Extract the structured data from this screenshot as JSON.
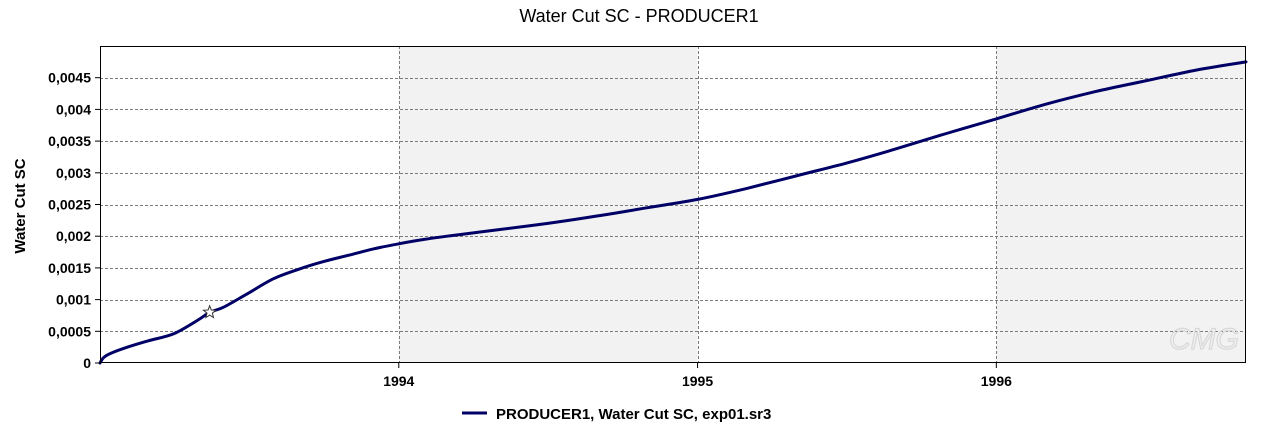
{
  "chart_data": {
    "type": "line",
    "title": "Water Cut SC - PRODUCER1",
    "xlabel": "",
    "ylabel": "Water Cut SC",
    "xlim": [
      "1993-01-01",
      "1996-11-01"
    ],
    "ylim": [
      0,
      0.005
    ],
    "x_ticks": [
      {
        "value": "1994-01-01",
        "label": "1994"
      },
      {
        "value": "1995-01-01",
        "label": "1995"
      },
      {
        "value": "1996-01-01",
        "label": "1996"
      }
    ],
    "y_ticks": [
      {
        "value": 0,
        "label": "0"
      },
      {
        "value": 0.0005,
        "label": "0,0005"
      },
      {
        "value": 0.001,
        "label": "0,001"
      },
      {
        "value": 0.0015,
        "label": "0,0015"
      },
      {
        "value": 0.002,
        "label": "0,002"
      },
      {
        "value": 0.0025,
        "label": "0,0025"
      },
      {
        "value": 0.003,
        "label": "0,003"
      },
      {
        "value": 0.0035,
        "label": "0,0035"
      },
      {
        "value": 0.004,
        "label": "0,004"
      },
      {
        "value": 0.0045,
        "label": "0,0045"
      }
    ],
    "grid": true,
    "legend_position": "bottom",
    "series": [
      {
        "name": "PRODUCER1, Water Cut SC, exp01.sr3",
        "color": "#000066",
        "x": [
          "1993-01-01",
          "1993-01-05",
          "1993-01-12",
          "1993-02-01",
          "1993-03-01",
          "1993-04-01",
          "1993-05-01",
          "1993-05-15",
          "1993-06-01",
          "1993-07-01",
          "1993-08-01",
          "1993-09-01",
          "1993-10-01",
          "1993-11-01",
          "1993-12-01",
          "1994-01-01",
          "1994-02-01",
          "1994-03-01",
          "1994-04-01",
          "1994-05-01",
          "1994-07-01",
          "1994-09-01",
          "1994-11-01",
          "1995-01-01",
          "1995-03-01",
          "1995-05-01",
          "1995-07-01",
          "1995-09-01",
          "1995-11-01",
          "1996-01-01",
          "1996-03-01",
          "1996-05-01",
          "1996-07-01",
          "1996-09-01",
          "1996-11-01"
        ],
        "values": [
          0,
          8e-05,
          0.00014,
          0.00024,
          0.00035,
          0.00046,
          0.00068,
          0.0008,
          0.00088,
          0.0011,
          0.00133,
          0.00148,
          0.0016,
          0.0017,
          0.0018,
          0.00188,
          0.00195,
          0.002,
          0.00205,
          0.0021,
          0.0022,
          0.00232,
          0.00245,
          0.00258,
          0.00275,
          0.00295,
          0.00315,
          0.00338,
          0.00362,
          0.00385,
          0.00408,
          0.00428,
          0.00445,
          0.00462,
          0.00475
        ]
      }
    ],
    "annotations": [
      {
        "type": "star-marker",
        "x": "1993-05-15",
        "y": 0.0008
      }
    ]
  },
  "watermark": "CMG"
}
